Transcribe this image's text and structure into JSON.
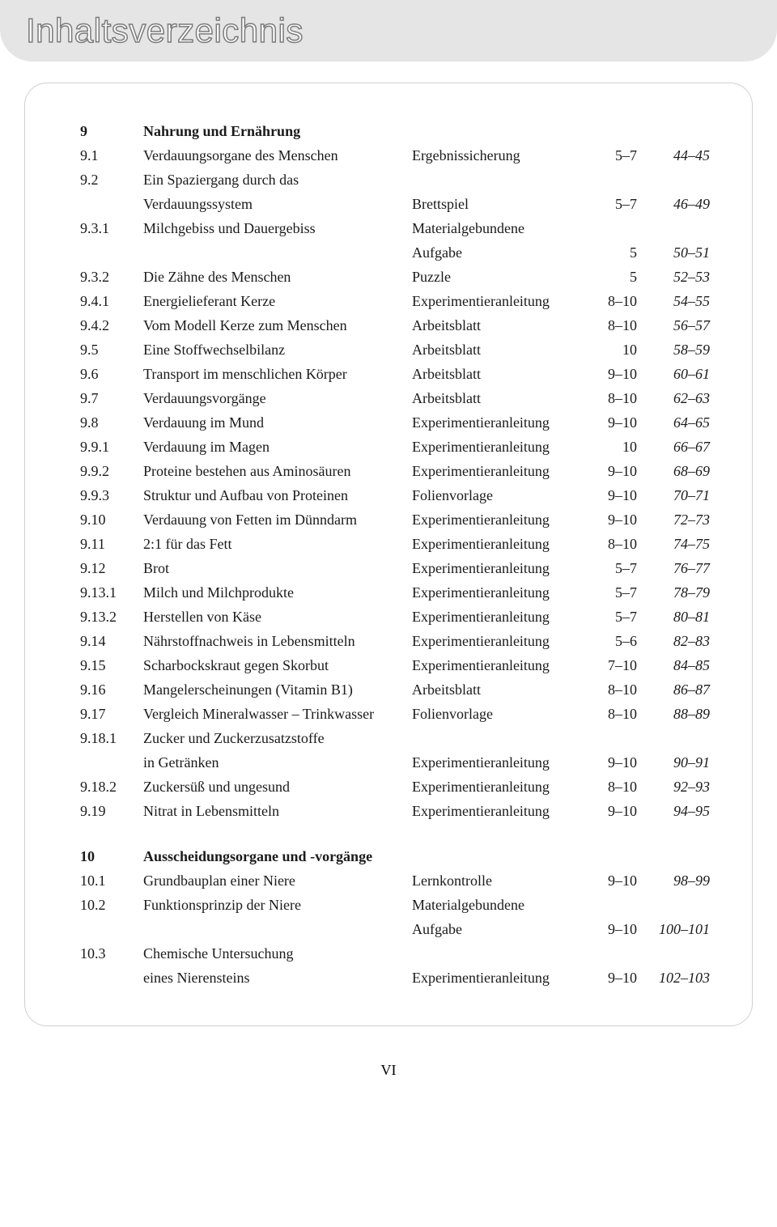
{
  "header": {
    "title": "Inhaltsverzeichnis"
  },
  "footer": {
    "page_number": "VI"
  },
  "sections": [
    {
      "num": "9",
      "title": "Nahrung und Ernährung",
      "entries": [
        {
          "num": "9.1",
          "title": "Verdauungsorgane des Menschen",
          "type": "Ergebnissicherung",
          "grade": "5–7",
          "pages": "44–45"
        },
        {
          "num": "9.2",
          "title": "Ein Spaziergang durch das",
          "type": "",
          "grade": "",
          "pages": ""
        },
        {
          "num": "",
          "title": "Verdauungssystem",
          "type": "Brettspiel",
          "grade": "5–7",
          "pages": "46–49"
        },
        {
          "num": "9.3.1",
          "title": "Milchgebiss und Dauergebiss",
          "type": "Materialgebundene",
          "grade": "",
          "pages": ""
        },
        {
          "num": "",
          "title": "",
          "type": "Aufgabe",
          "grade": "5",
          "pages": "50–51"
        },
        {
          "num": "9.3.2",
          "title": "Die Zähne des Menschen",
          "type": "Puzzle",
          "grade": "5",
          "pages": "52–53"
        },
        {
          "num": "9.4.1",
          "title": "Energielieferant Kerze",
          "type": "Experimentieranleitung",
          "grade": "8–10",
          "pages": "54–55"
        },
        {
          "num": "9.4.2",
          "title": "Vom Modell Kerze zum Menschen",
          "type": "Arbeitsblatt",
          "grade": "8–10",
          "pages": "56–57"
        },
        {
          "num": "9.5",
          "title": "Eine Stoffwechselbilanz",
          "type": "Arbeitsblatt",
          "grade": "10",
          "pages": "58–59"
        },
        {
          "num": "9.6",
          "title": "Transport im menschlichen Körper",
          "type": "Arbeitsblatt",
          "grade": "9–10",
          "pages": "60–61"
        },
        {
          "num": "9.7",
          "title": "Verdauungsvorgänge",
          "type": "Arbeitsblatt",
          "grade": "8–10",
          "pages": "62–63"
        },
        {
          "num": "9.8",
          "title": "Verdauung im Mund",
          "type": "Experimentieranleitung",
          "grade": "9–10",
          "pages": "64–65"
        },
        {
          "num": "9.9.1",
          "title": "Verdauung im Magen",
          "type": "Experimentieranleitung",
          "grade": "10",
          "pages": "66–67"
        },
        {
          "num": "9.9.2",
          "title": "Proteine bestehen aus Aminosäuren",
          "type": "Experimentieranleitung",
          "grade": "9–10",
          "pages": "68–69"
        },
        {
          "num": "9.9.3",
          "title": "Struktur und Aufbau von Proteinen",
          "type": "Folienvorlage",
          "grade": "9–10",
          "pages": "70–71"
        },
        {
          "num": "9.10",
          "title": "Verdauung von Fetten im Dünndarm",
          "type": "Experimentieranleitung",
          "grade": "9–10",
          "pages": "72–73"
        },
        {
          "num": "9.11",
          "title": "2:1 für das Fett",
          "type": "Experimentieranleitung",
          "grade": "8–10",
          "pages": "74–75"
        },
        {
          "num": "9.12",
          "title": "Brot",
          "type": "Experimentieranleitung",
          "grade": "5–7",
          "pages": "76–77"
        },
        {
          "num": "9.13.1",
          "title": "Milch und Milchprodukte",
          "type": "Experimentieranleitung",
          "grade": "5–7",
          "pages": "78–79"
        },
        {
          "num": "9.13.2",
          "title": "Herstellen von Käse",
          "type": "Experimentieranleitung",
          "grade": "5–7",
          "pages": "80–81"
        },
        {
          "num": "9.14",
          "title": "Nährstoffnachweis in Lebensmitteln",
          "type": "Experimentieranleitung",
          "grade": "5–6",
          "pages": "82–83"
        },
        {
          "num": "9.15",
          "title": "Scharbockskraut gegen Skorbut",
          "type": "Experimentieranleitung",
          "grade": "7–10",
          "pages": "84–85"
        },
        {
          "num": "9.16",
          "title": "Mangelerscheinungen (Vitamin B1)",
          "type": "Arbeitsblatt",
          "grade": "8–10",
          "pages": "86–87"
        },
        {
          "num": "9.17",
          "title": "Vergleich Mineralwasser – Trinkwasser",
          "type": "Folienvorlage",
          "grade": "8–10",
          "pages": "88–89"
        },
        {
          "num": "9.18.1",
          "title": "Zucker und Zuckerzusatzstoffe",
          "type": "",
          "grade": "",
          "pages": ""
        },
        {
          "num": "",
          "title": "in Getränken",
          "type": "Experimentieranleitung",
          "grade": "9–10",
          "pages": "90–91"
        },
        {
          "num": "9.18.2",
          "title": "Zuckersüß und ungesund",
          "type": "Experimentieranleitung",
          "grade": "8–10",
          "pages": "92–93"
        },
        {
          "num": "9.19",
          "title": "Nitrat in Lebensmitteln",
          "type": "Experimentieranleitung",
          "grade": "9–10",
          "pages": "94–95"
        }
      ]
    },
    {
      "num": "10",
      "title": "Ausscheidungsorgane und -vorgänge",
      "entries": [
        {
          "num": "10.1",
          "title": "Grundbauplan einer Niere",
          "type": "Lernkontrolle",
          "grade": "9–10",
          "pages": "98–99"
        },
        {
          "num": "10.2",
          "title": "Funktionsprinzip der Niere",
          "type": "Materialgebundene",
          "grade": "",
          "pages": ""
        },
        {
          "num": "",
          "title": "",
          "type": "Aufgabe",
          "grade": "9–10",
          "pages": "100–101"
        },
        {
          "num": "10.3",
          "title": "Chemische Untersuchung",
          "type": "",
          "grade": "",
          "pages": ""
        },
        {
          "num": "",
          "title": "eines Nierensteins",
          "type": "Experimentieranleitung",
          "grade": "9–10",
          "pages": "102–103"
        }
      ]
    }
  ]
}
